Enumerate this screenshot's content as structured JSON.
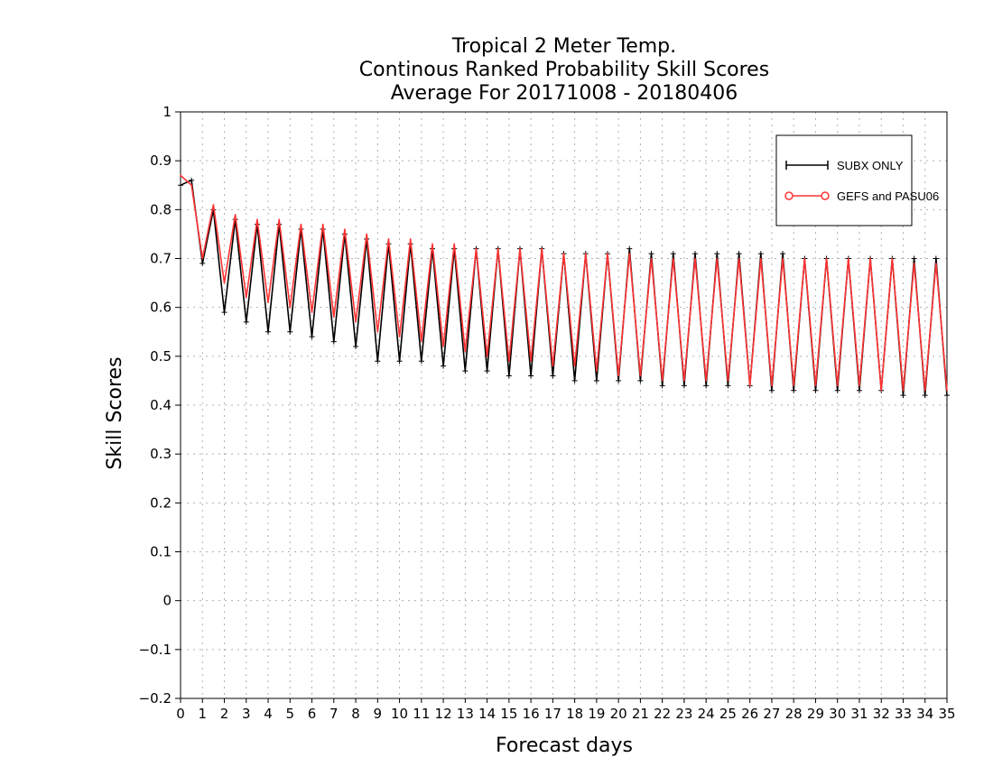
{
  "chart_data": {
    "type": "line",
    "title": [
      "Tropical 2 Meter Temp.",
      "Continous Ranked Probability Skill Scores",
      "Average For 20171008 - 20180406"
    ],
    "xlabel": "Forecast days",
    "ylabel": "Skill Scores",
    "xlim": [
      0,
      35
    ],
    "ylim": [
      -0.2,
      1
    ],
    "x_ticks": [
      "0",
      "1",
      "2",
      "3",
      "4",
      "5",
      "6",
      "7",
      "8",
      "9",
      "10",
      "11",
      "12",
      "13",
      "14",
      "15",
      "16",
      "17",
      "18",
      "19",
      "20",
      "21",
      "22",
      "23",
      "24",
      "25",
      "26",
      "27",
      "28",
      "29",
      "30",
      "31",
      "32",
      "33",
      "34",
      "35"
    ],
    "y_ticks": [
      "−0.2",
      "−0.1",
      "0",
      "0.1",
      "0.2",
      "0.3",
      "0.4",
      "0.5",
      "0.6",
      "0.7",
      "0.8",
      "0.9",
      "1"
    ],
    "y_tick_values": [
      -0.2,
      -0.1,
      0,
      0.1,
      0.2,
      0.3,
      0.4,
      0.5,
      0.6,
      0.7,
      0.8,
      0.9,
      1
    ],
    "grid": true,
    "legend_position": "top-right",
    "x": [
      0,
      0.5,
      1,
      1.5,
      2,
      2.5,
      3,
      3.5,
      4,
      4.5,
      5,
      5.5,
      6,
      6.5,
      7,
      7.5,
      8,
      8.5,
      9,
      9.5,
      10,
      10.5,
      11,
      11.5,
      12,
      12.5,
      13,
      13.5,
      14,
      14.5,
      15,
      15.5,
      16,
      16.5,
      17,
      17.5,
      18,
      18.5,
      19,
      19.5,
      20,
      20.5,
      21,
      21.5,
      22,
      22.5,
      23,
      23.5,
      24,
      24.5,
      25,
      25.5,
      26,
      26.5,
      27,
      27.5,
      28,
      28.5,
      29,
      29.5,
      30,
      30.5,
      31,
      31.5,
      32,
      32.5,
      33,
      33.5,
      34,
      34.5,
      35
    ],
    "series": [
      {
        "name": "SUBX ONLY",
        "color": "#000000",
        "marker": "plus",
        "values": [
          0.85,
          0.86,
          0.69,
          0.8,
          0.59,
          0.78,
          0.57,
          0.77,
          0.55,
          0.77,
          0.55,
          0.76,
          0.54,
          0.76,
          0.53,
          0.75,
          0.52,
          0.74,
          0.49,
          0.73,
          0.49,
          0.73,
          0.49,
          0.72,
          0.48,
          0.72,
          0.47,
          0.72,
          0.47,
          0.72,
          0.46,
          0.72,
          0.46,
          0.72,
          0.46,
          0.71,
          0.45,
          0.71,
          0.45,
          0.71,
          0.45,
          0.72,
          0.45,
          0.71,
          0.44,
          0.71,
          0.44,
          0.71,
          0.44,
          0.71,
          0.44,
          0.71,
          0.44,
          0.71,
          0.43,
          0.71,
          0.43,
          0.7,
          0.43,
          0.7,
          0.43,
          0.7,
          0.43,
          0.7,
          0.43,
          0.7,
          0.42,
          0.7,
          0.42,
          0.7,
          0.42
        ]
      },
      {
        "name": "GEFS and PASU06",
        "color": "#ff3333",
        "marker": "circle",
        "values": [
          0.87,
          0.85,
          0.7,
          0.81,
          0.65,
          0.79,
          0.62,
          0.78,
          0.61,
          0.78,
          0.6,
          0.77,
          0.59,
          0.77,
          0.58,
          0.76,
          0.57,
          0.75,
          0.55,
          0.74,
          0.54,
          0.74,
          0.53,
          0.73,
          0.52,
          0.73,
          0.51,
          0.72,
          0.5,
          0.72,
          0.49,
          0.72,
          0.49,
          0.72,
          0.48,
          0.71,
          0.48,
          0.71,
          0.47,
          0.71,
          0.46,
          0.71,
          0.46,
          0.7,
          0.45,
          0.7,
          0.45,
          0.7,
          0.45,
          0.7,
          0.45,
          0.7,
          0.44,
          0.7,
          0.44,
          0.7,
          0.44,
          0.7,
          0.44,
          0.7,
          0.44,
          0.7,
          0.44,
          0.7,
          0.43,
          0.7,
          0.43,
          0.69,
          0.43,
          0.69,
          0.43
        ]
      }
    ]
  }
}
